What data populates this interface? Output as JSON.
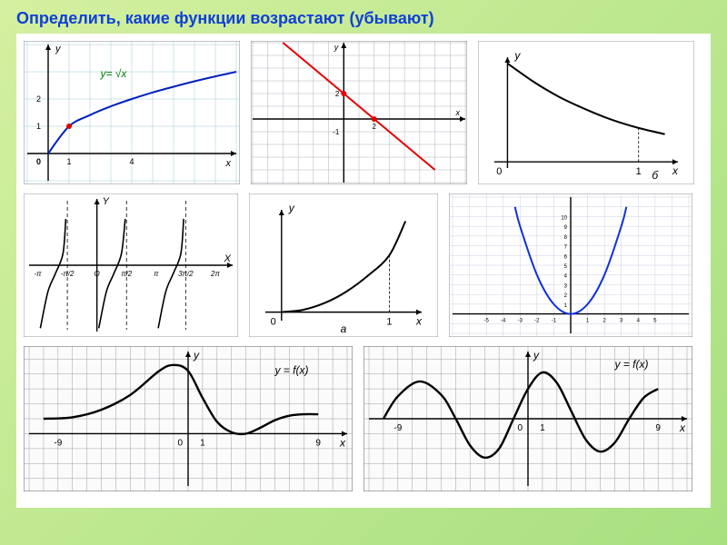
{
  "page": {
    "background_gradient": [
      "#d4f0a0",
      "#a8e080"
    ],
    "title": "Определить, какие функции возрастают (убывают)",
    "title_color": "#1040d8",
    "title_fontsize": 18
  },
  "charts": {
    "sqrt": {
      "type": "line",
      "stroke": "#0020c0",
      "stroke_width": 2,
      "label": "y= √x",
      "label_color": "#008000",
      "grid_color": "#a0c8d0",
      "axis_color": "#000000",
      "xlim": [
        -1,
        9
      ],
      "ylim": [
        -1,
        4
      ],
      "x_ticks": [
        1,
        4
      ],
      "y_ticks": [
        1,
        2
      ],
      "points": [
        [
          0,
          0
        ],
        [
          1,
          1
        ],
        [
          2,
          1.41
        ],
        [
          3,
          1.73
        ],
        [
          4,
          2
        ],
        [
          5,
          2.24
        ],
        [
          6,
          2.45
        ],
        [
          7,
          2.65
        ],
        [
          8,
          2.83
        ],
        [
          9,
          3
        ]
      ],
      "marker_points": [
        [
          1,
          1
        ]
      ],
      "marker_color": "#e00000"
    },
    "linear_down": {
      "type": "line",
      "stroke": "#e40000",
      "stroke_width": 2,
      "grid_color": "#b0b0c0",
      "axis_color": "#000000",
      "xlim": [
        -6,
        8
      ],
      "ylim": [
        -5,
        6
      ],
      "points": [
        [
          -4,
          6
        ],
        [
          6,
          -4
        ]
      ],
      "marker_points": [
        [
          0,
          2
        ],
        [
          2,
          0
        ]
      ],
      "marker_color": "#e40000",
      "x_ticks": [
        2
      ],
      "y_ticks": [
        2,
        -1
      ]
    },
    "decay": {
      "type": "line",
      "stroke": "#000000",
      "stroke_width": 2,
      "axis_color": "#000000",
      "xlim": [
        -0.1,
        1.3
      ],
      "ylim": [
        -0.1,
        1.7
      ],
      "points": [
        [
          0,
          1.6
        ],
        [
          0.2,
          1.3
        ],
        [
          0.4,
          1.05
        ],
        [
          0.6,
          0.85
        ],
        [
          0.8,
          0.68
        ],
        [
          1.0,
          0.55
        ],
        [
          1.2,
          0.45
        ]
      ],
      "label_b": "б",
      "x_ticks": [
        1
      ]
    },
    "tan": {
      "type": "multi-line",
      "stroke": "#000000",
      "stroke_width": 1.6,
      "axis_color": "#000000",
      "asymptote_style": "dashed",
      "xlim": [
        -3.6,
        7.2
      ],
      "ylim": [
        -4,
        4
      ],
      "x_tick_labels": [
        "-π",
        "-π/2",
        "O",
        "π/2",
        "π",
        "3π/2",
        "2π"
      ],
      "x_tick_vals": [
        -3.14,
        -1.57,
        0,
        1.57,
        3.14,
        4.71,
        6.28
      ],
      "branches": [
        [
          [
            -3.0,
            -3.8
          ],
          [
            -2.6,
            -1.6
          ],
          [
            -2.2,
            -0.5
          ],
          [
            -1.8,
            0.7
          ],
          [
            -1.65,
            2.8
          ]
        ],
        [
          [
            0.1,
            -3.8
          ],
          [
            0.5,
            -1.6
          ],
          [
            0.9,
            -0.5
          ],
          [
            1.3,
            0.7
          ],
          [
            1.5,
            2.8
          ]
        ],
        [
          [
            3.25,
            -3.8
          ],
          [
            3.65,
            -1.6
          ],
          [
            4.05,
            -0.5
          ],
          [
            4.45,
            0.7
          ],
          [
            4.6,
            2.8
          ]
        ]
      ],
      "asymptotes": [
        -1.57,
        1.57,
        4.71
      ]
    },
    "growth": {
      "type": "line",
      "stroke": "#000000",
      "stroke_width": 2,
      "axis_color": "#000000",
      "xlim": [
        -0.15,
        1.3
      ],
      "ylim": [
        -0.15,
        1.8
      ],
      "points": [
        [
          0,
          0
        ],
        [
          0.2,
          0.04
        ],
        [
          0.4,
          0.16
        ],
        [
          0.6,
          0.36
        ],
        [
          0.8,
          0.64
        ],
        [
          1.0,
          1.0
        ],
        [
          1.15,
          1.6
        ]
      ],
      "label_a": "а",
      "x_ticks": [
        1
      ]
    },
    "parabola": {
      "type": "line",
      "stroke": "#1030e0",
      "stroke_width": 2,
      "grid_color": "#c8d0e0",
      "axis_color": "#000000",
      "xlim": [
        -7,
        7
      ],
      "ylim": [
        -2,
        12
      ],
      "points": [
        [
          -3.3,
          11
        ],
        [
          -3,
          9
        ],
        [
          -2,
          4
        ],
        [
          -1,
          1
        ],
        [
          0,
          0
        ],
        [
          1,
          1
        ],
        [
          2,
          4
        ],
        [
          3,
          9
        ],
        [
          3.3,
          11
        ]
      ],
      "x_ticks": [
        -5,
        -4,
        -3,
        -2,
        -1,
        1,
        2,
        3,
        4,
        5
      ],
      "y_ticks": [
        1,
        2,
        3,
        4,
        5,
        6,
        7,
        8,
        9,
        10
      ]
    },
    "wave1": {
      "type": "line",
      "stroke": "#000000",
      "stroke_width": 2.4,
      "grid_color": "#9aa0a8",
      "axis_color": "#000000",
      "label": "y = f(x)",
      "xlim": [
        -11,
        11
      ],
      "ylim": [
        -3.5,
        5.5
      ],
      "points": [
        [
          -10,
          1
        ],
        [
          -8,
          1.1
        ],
        [
          -6,
          1.6
        ],
        [
          -4,
          2.6
        ],
        [
          -2,
          4.2
        ],
        [
          -1,
          4.6
        ],
        [
          0,
          4.2
        ],
        [
          1,
          2.4
        ],
        [
          2,
          0.8
        ],
        [
          3,
          0.1
        ],
        [
          4,
          0
        ],
        [
          5,
          0.4
        ],
        [
          6,
          0.9
        ],
        [
          7,
          1.2
        ],
        [
          8,
          1.3
        ],
        [
          9,
          1.3
        ]
      ],
      "x_ticks": [
        -9,
        1,
        9
      ]
    },
    "wave2": {
      "type": "line",
      "stroke": "#000000",
      "stroke_width": 2.4,
      "grid_color": "#9aa0a8",
      "axis_color": "#000000",
      "label": "y = f(x)",
      "xlim": [
        -11,
        11
      ],
      "ylim": [
        -4.5,
        4.5
      ],
      "points": [
        [
          -10,
          0
        ],
        [
          -9,
          1.5
        ],
        [
          -7.5,
          2.5
        ],
        [
          -6,
          1.6
        ],
        [
          -5,
          0
        ],
        [
          -4,
          -1.8
        ],
        [
          -3,
          -2.6
        ],
        [
          -2,
          -2
        ],
        [
          -1,
          0
        ],
        [
          0,
          2
        ],
        [
          1,
          3.1
        ],
        [
          2,
          2.4
        ],
        [
          3,
          0.5
        ],
        [
          4,
          -1.4
        ],
        [
          5,
          -2.2
        ],
        [
          6,
          -1.6
        ],
        [
          7,
          0
        ],
        [
          8,
          1.4
        ],
        [
          9,
          2
        ]
      ],
      "x_ticks": [
        -9,
        1,
        9
      ]
    }
  }
}
